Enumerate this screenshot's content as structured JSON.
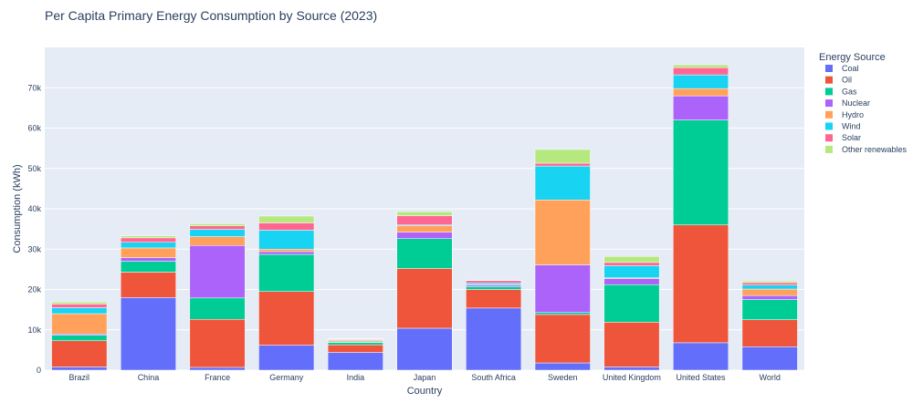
{
  "chart_data": {
    "type": "bar",
    "stacked": true,
    "title": "Per Capita Primary Energy Consumption by Source (2023)",
    "xlabel": "Country",
    "ylabel": "Consumption (kWh)",
    "ylim": [
      0,
      80000
    ],
    "yticks": [
      0,
      10000,
      20000,
      30000,
      40000,
      50000,
      60000,
      70000
    ],
    "ytick_labels": [
      "0",
      "10k",
      "20k",
      "30k",
      "40k",
      "50k",
      "60k",
      "70k"
    ],
    "grid": true,
    "legend_title": "Energy Source",
    "legend_position": "right",
    "categories": [
      "Brazil",
      "China",
      "France",
      "Germany",
      "India",
      "Japan",
      "South Africa",
      "Sweden",
      "United Kingdom",
      "United States",
      "World"
    ],
    "series": [
      {
        "name": "Coal",
        "color": "#636efa",
        "values": [
          800,
          18000,
          700,
          6200,
          4400,
          10400,
          15400,
          1800,
          800,
          6800,
          5800
        ]
      },
      {
        "name": "Oil",
        "color": "#ef553b",
        "values": [
          6500,
          6300,
          11900,
          13300,
          1900,
          14800,
          4600,
          12000,
          11100,
          29200,
          6700
        ]
      },
      {
        "name": "Gas",
        "color": "#00cc96",
        "values": [
          1400,
          2700,
          5300,
          9200,
          600,
          7400,
          700,
          500,
          9300,
          26000,
          5000
        ]
      },
      {
        "name": "Nuclear",
        "color": "#ab63fa",
        "values": [
          300,
          900,
          13000,
          700,
          100,
          1600,
          400,
          11800,
          1500,
          6000,
          1000
        ]
      },
      {
        "name": "Hydro",
        "color": "#ffa15a",
        "values": [
          5000,
          2400,
          2200,
          600,
          300,
          1600,
          100,
          16100,
          200,
          1800,
          1600
        ]
      },
      {
        "name": "Wind",
        "color": "#19d3f3",
        "values": [
          1500,
          1400,
          1800,
          4700,
          200,
          200,
          400,
          8400,
          3000,
          3400,
          1000
        ]
      },
      {
        "name": "Solar",
        "color": "#ff6692",
        "values": [
          900,
          1100,
          900,
          1800,
          200,
          2300,
          600,
          700,
          800,
          1800,
          600
        ]
      },
      {
        "name": "Other renewables",
        "color": "#b6e880",
        "values": [
          500,
          500,
          500,
          1700,
          100,
          1000,
          100,
          3400,
          1500,
          700,
          400
        ]
      }
    ]
  }
}
